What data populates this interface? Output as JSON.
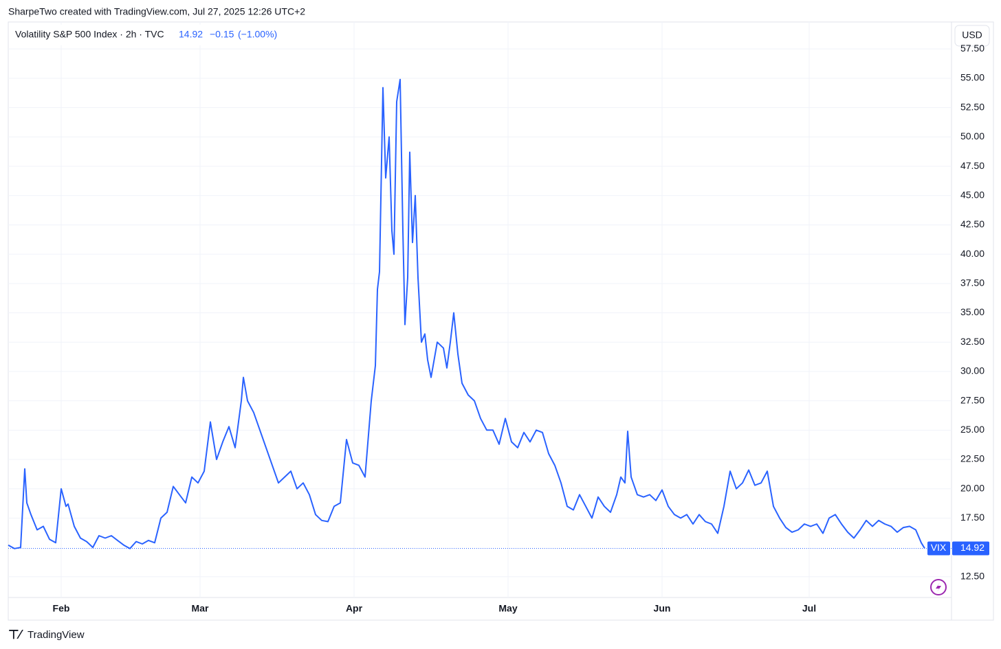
{
  "header": {
    "attribution": "SharpeTwo created with TradingView.com, Jul 27, 2025 12:26 UTC+2",
    "symbol": "Volatility S&P 500 Index · 2h · TVC",
    "last": 14.92,
    "change": "−0.15",
    "change_pct": "(−1.00%)",
    "currency": "USD",
    "brand": "TradingView"
  },
  "chart_data": {
    "type": "line",
    "x_labels": [
      "Feb",
      "Mar",
      "Apr",
      "May",
      "Jun",
      "Jul"
    ],
    "series": [
      {
        "name": "VIX",
        "color": "#2962ff",
        "values": [
          15.2,
          14.9,
          15.0,
          21.7,
          18.8,
          17.8,
          16.5,
          16.8,
          15.7,
          15.4,
          20.0,
          18.5,
          18.7,
          16.8,
          15.8,
          15.5,
          15.0,
          16.0,
          15.8,
          16.0,
          15.6,
          15.2,
          14.9,
          15.5,
          15.3,
          15.6,
          15.4,
          17.5,
          18.0,
          20.2,
          19.5,
          18.8,
          21.0,
          20.5,
          21.5,
          25.7,
          22.5,
          24.0,
          25.3,
          23.5,
          27.5,
          29.5,
          27.5,
          26.5,
          25.0,
          23.5,
          22.0,
          20.5,
          21.0,
          21.5,
          20.0,
          20.5,
          19.5,
          17.8,
          17.3,
          17.2,
          18.5,
          18.8,
          24.2,
          22.2,
          22.0,
          21.0,
          27.5,
          30.5,
          37.0,
          38.5,
          54.2,
          46.5,
          50.0,
          42.0,
          40.0,
          53.0,
          54.9,
          42.0,
          34.0,
          38.0,
          48.7,
          41.0,
          45.0,
          38.0,
          32.5,
          33.2,
          31.0,
          29.5,
          32.5,
          32.0,
          30.3,
          32.5,
          35.0,
          31.5,
          29.0,
          28.0,
          27.5,
          26.0,
          25.0,
          25.0,
          23.8,
          26.0,
          24.0,
          23.5,
          24.8,
          24.0,
          25.0,
          24.8,
          23.0,
          22.0,
          20.5,
          18.5,
          18.2,
          19.5,
          18.5,
          17.5,
          19.3,
          18.5,
          18.0,
          19.5,
          21.0,
          20.5,
          24.9,
          21.0,
          19.5,
          19.3,
          19.5,
          19.0,
          19.9,
          18.5,
          17.8,
          17.5,
          17.8,
          17.0,
          17.8,
          17.2,
          17.0,
          16.2,
          18.5,
          21.5,
          20.0,
          20.5,
          21.6,
          20.3,
          20.5,
          21.5,
          18.5,
          17.5,
          16.7,
          16.3,
          16.5,
          17.0,
          16.8,
          17.0,
          16.2,
          17.5,
          17.8,
          17.0,
          16.3,
          15.8,
          16.5,
          17.3,
          16.8,
          17.3,
          17.0,
          16.8,
          16.3,
          16.7,
          16.8,
          16.5,
          15.4,
          14.92
        ]
      }
    ],
    "ylim": [
      8.8,
      59.8
    ],
    "yticks": [
      {
        "value": 12.5,
        "label": "12.50"
      },
      {
        "value": 17.5,
        "label": "17.50"
      },
      {
        "value": 20,
        "label": "20.00"
      },
      {
        "value": 22.5,
        "label": "22.50"
      },
      {
        "value": 25,
        "label": "25.00"
      },
      {
        "value": 27.5,
        "label": "27.50"
      },
      {
        "value": 30,
        "label": "30.00"
      },
      {
        "value": 32.5,
        "label": "32.50"
      },
      {
        "value": 35,
        "label": "35.00"
      },
      {
        "value": 37.5,
        "label": "37.50"
      },
      {
        "value": 40,
        "label": "40.00"
      },
      {
        "value": 42.5,
        "label": "42.50"
      },
      {
        "value": 45,
        "label": "45.00"
      },
      {
        "value": 47.5,
        "label": "47.50"
      },
      {
        "value": 50,
        "label": "50.00"
      },
      {
        "value": 52.5,
        "label": "52.50"
      },
      {
        "value": 55,
        "label": "55.00"
      },
      {
        "value": 57.5,
        "label": "57.50"
      }
    ],
    "grid": true
  }
}
